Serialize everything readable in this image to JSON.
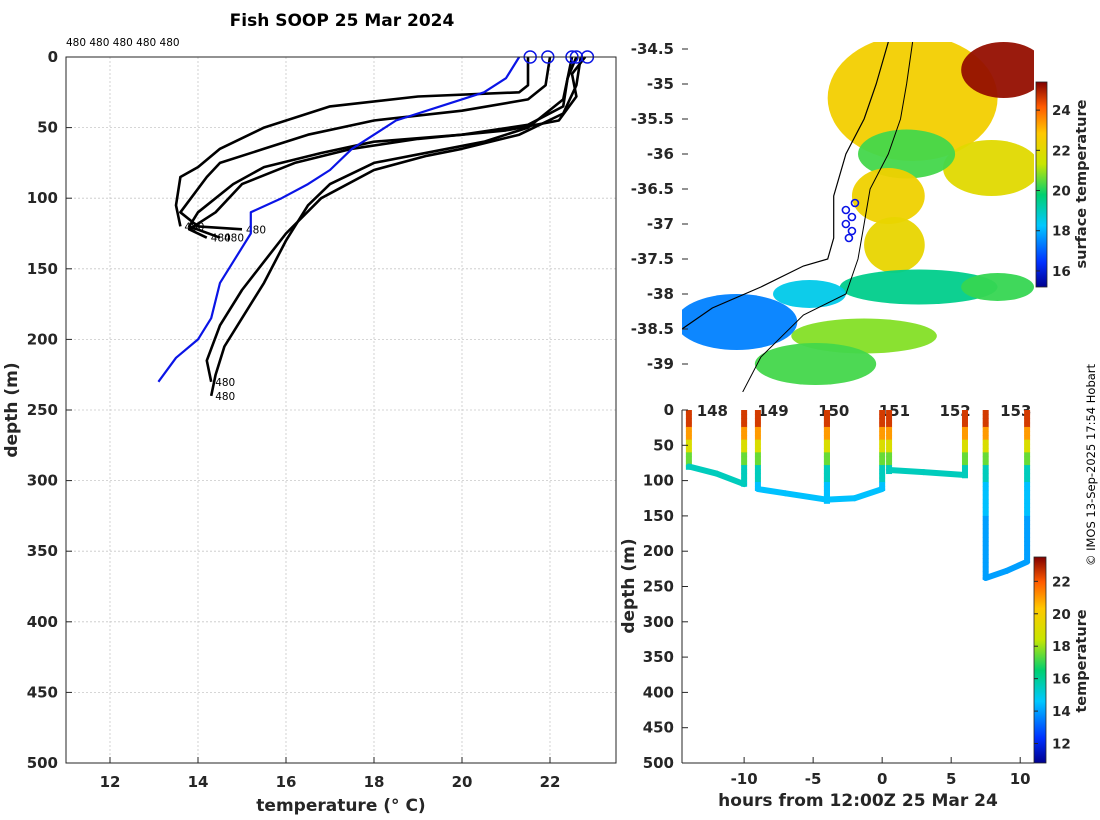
{
  "figure": {
    "title": "Fish SOOP 25 Mar 2024",
    "drop_id_labels": "480 480 480 480 480",
    "credit": "© IMOS 13-Sep-2025 17:54 Hobart",
    "profile_label": "480"
  },
  "chart_data": [
    {
      "id": "profiles",
      "type": "line",
      "title": "Fish SOOP 25 Mar 2024",
      "xlabel": "temperature (° C)",
      "ylabel": "depth (m)",
      "xlim": [
        11,
        23.5
      ],
      "ylim": [
        500,
        0
      ],
      "xticks": [
        12,
        14,
        16,
        18,
        20,
        22
      ],
      "yticks": [
        0,
        50,
        100,
        150,
        200,
        250,
        300,
        350,
        400,
        450,
        500
      ],
      "grid": true,
      "series": [
        {
          "name": "profile-1",
          "color": "#000000",
          "points": [
            [
              21.5,
              0
            ],
            [
              21.5,
              20
            ],
            [
              21.3,
              25
            ],
            [
              19,
              28
            ],
            [
              17,
              35
            ],
            [
              15.5,
              50
            ],
            [
              14.5,
              65
            ],
            [
              14,
              78
            ],
            [
              13.6,
              85
            ],
            [
              13.5,
              105
            ],
            [
              13.6,
              120
            ]
          ]
        },
        {
          "name": "profile-2",
          "color": "#000000",
          "points": [
            [
              22,
              0
            ],
            [
              21.9,
              20
            ],
            [
              21.5,
              30
            ],
            [
              20,
              38
            ],
            [
              18,
              45
            ],
            [
              16.5,
              55
            ],
            [
              15.5,
              65
            ],
            [
              14.5,
              75
            ],
            [
              14.2,
              85
            ],
            [
              13.6,
              110
            ],
            [
              14,
              120
            ],
            [
              15,
              122
            ]
          ]
        },
        {
          "name": "profile-3",
          "color": "#000000",
          "points": [
            [
              22.6,
              0
            ],
            [
              22.4,
              15
            ],
            [
              22.3,
              35
            ],
            [
              21.5,
              48
            ],
            [
              20,
              55
            ],
            [
              18,
              60
            ],
            [
              16.8,
              68
            ],
            [
              15.5,
              78
            ],
            [
              14.8,
              90
            ],
            [
              14,
              110
            ],
            [
              13.8,
              120
            ],
            [
              14.5,
              128
            ]
          ]
        },
        {
          "name": "profile-4",
          "color": "#000000",
          "points": [
            [
              22.8,
              0
            ],
            [
              22.5,
              12
            ],
            [
              22.6,
              28
            ],
            [
              22.2,
              45
            ],
            [
              21,
              52
            ],
            [
              19,
              58
            ],
            [
              17.5,
              65
            ],
            [
              16.2,
              75
            ],
            [
              15,
              90
            ],
            [
              14.4,
              110
            ],
            [
              13.8,
              122
            ],
            [
              14.2,
              128
            ]
          ]
        },
        {
          "name": "profile-5",
          "color": "#000000",
          "points": [
            [
              22.5,
              0
            ],
            [
              22.3,
              30
            ],
            [
              21.5,
              50
            ],
            [
              20.5,
              60
            ],
            [
              19.5,
              66
            ],
            [
              18,
              75
            ],
            [
              17,
              90
            ],
            [
              16.5,
              105
            ],
            [
              16,
              130
            ],
            [
              15.5,
              160
            ],
            [
              15,
              185
            ],
            [
              14.6,
              205
            ],
            [
              14.4,
              225
            ],
            [
              14.3,
              240
            ]
          ]
        },
        {
          "name": "profile-6",
          "color": "#000000",
          "points": [
            [
              22.7,
              0
            ],
            [
              22.6,
              20
            ],
            [
              22.3,
              40
            ],
            [
              21.3,
              55
            ],
            [
              20,
              65
            ],
            [
              19.2,
              70
            ],
            [
              18,
              80
            ],
            [
              16.8,
              100
            ],
            [
              16,
              125
            ],
            [
              15.5,
              145
            ],
            [
              15,
              165
            ],
            [
              14.5,
              190
            ],
            [
              14.2,
              215
            ],
            [
              14.3,
              230
            ]
          ]
        },
        {
          "name": "mean-profile",
          "color": "#0a14e6",
          "points": [
            [
              21.3,
              0
            ],
            [
              21,
              15
            ],
            [
              20.5,
              25
            ],
            [
              19.5,
              35
            ],
            [
              18.5,
              45
            ],
            [
              18,
              55
            ],
            [
              17.5,
              65
            ],
            [
              17,
              80
            ],
            [
              16.5,
              90
            ],
            [
              15.9,
              100
            ],
            [
              15.2,
              110
            ],
            [
              15.2,
              125
            ],
            [
              14.9,
              140
            ],
            [
              14.5,
              160
            ],
            [
              14.3,
              185
            ],
            [
              14,
              200
            ],
            [
              13.5,
              213
            ],
            [
              13.1,
              230
            ]
          ]
        }
      ],
      "surface_markers_x": [
        21.55,
        21.95,
        22.5,
        22.6,
        22.85
      ]
    },
    {
      "id": "map",
      "type": "heatmap",
      "colorbar_label": "surface temperature",
      "colorbar_ticks": [
        16,
        18,
        20,
        22,
        24
      ],
      "colorbar_range": [
        15.2,
        25.4
      ],
      "xlim": [
        147.5,
        153.3
      ],
      "ylim": [
        -39.4,
        -34.4
      ],
      "xticks": [
        148,
        149,
        150,
        151,
        152,
        153
      ],
      "xtick_labels": [
        "148",
        "149",
        "150",
        "151",
        "152",
        "153"
      ],
      "yticks": [
        -34.5,
        -35,
        -35.5,
        -36,
        -36.5,
        -37,
        -37.5,
        -38,
        -38.5,
        -39
      ],
      "ytick_labels": [
        "-34.5",
        "-35",
        "-35.5",
        "-36",
        "-36.5",
        "-37",
        "-37.5",
        "-38",
        "-38.5",
        "-39"
      ],
      "stations": [
        [
          150.2,
          -36.8
        ],
        [
          150.3,
          -36.9
        ],
        [
          150.35,
          -36.7
        ],
        [
          150.2,
          -37
        ],
        [
          150.3,
          -37.1
        ],
        [
          150.25,
          -37.2
        ]
      ],
      "sst_patches": [
        {
          "lon": 151.3,
          "lat": -35.2,
          "rx": 1.4,
          "ry": 0.9,
          "t": 22.5
        },
        {
          "lon": 152.8,
          "lat": -34.8,
          "rx": 0.7,
          "ry": 0.4,
          "t": 25.2
        },
        {
          "lon": 152.6,
          "lat": -36.2,
          "rx": 0.8,
          "ry": 0.4,
          "t": 22.0
        },
        {
          "lon": 151.2,
          "lat": -36.0,
          "rx": 0.8,
          "ry": 0.35,
          "t": 20.3
        },
        {
          "lon": 150.9,
          "lat": -36.6,
          "rx": 0.6,
          "ry": 0.4,
          "t": 22.4
        },
        {
          "lon": 151.0,
          "lat": -37.3,
          "rx": 0.5,
          "ry": 0.4,
          "t": 22.2
        },
        {
          "lon": 151.4,
          "lat": -37.9,
          "rx": 1.3,
          "ry": 0.25,
          "t": 19.5
        },
        {
          "lon": 152.7,
          "lat": -37.9,
          "rx": 0.6,
          "ry": 0.2,
          "t": 20.2
        },
        {
          "lon": 148.4,
          "lat": -38.4,
          "rx": 1.0,
          "ry": 0.4,
          "t": 17.4
        },
        {
          "lon": 149.6,
          "lat": -38.0,
          "rx": 0.6,
          "ry": 0.2,
          "t": 18.5
        },
        {
          "lon": 150.5,
          "lat": -38.6,
          "rx": 1.2,
          "ry": 0.25,
          "t": 20.8
        },
        {
          "lon": 149.7,
          "lat": -39.0,
          "rx": 1.0,
          "ry": 0.3,
          "t": 20.3
        }
      ]
    },
    {
      "id": "section",
      "type": "scatter",
      "xlabel": "hours from 12:00Z 25 Mar 24",
      "ylabel": "depth (m)",
      "colorbar_label": "temperature",
      "colorbar_ticks": [
        12,
        14,
        16,
        18,
        20,
        22
      ],
      "colorbar_range": [
        10.8,
        23.5
      ],
      "xlim": [
        -14.5,
        11
      ],
      "ylim": [
        500,
        0
      ],
      "xticks": [
        -10,
        -5,
        0,
        5,
        10
      ],
      "yticks": [
        0,
        50,
        100,
        150,
        200,
        250,
        300,
        350,
        400,
        450,
        500
      ],
      "drops": [
        {
          "x0": -14,
          "x1": -10,
          "bottom": [
            [
              -14,
              80
            ],
            [
              -12,
              90
            ],
            [
              -10,
              105
            ]
          ]
        },
        {
          "x0": -9,
          "x1": -4,
          "bottom": [
            [
              -9,
              112
            ],
            [
              -7,
              118
            ],
            [
              -4,
              127
            ]
          ]
        },
        {
          "x0": -4,
          "x1": 0,
          "bottom": [
            [
              -4,
              127
            ],
            [
              -2,
              125
            ],
            [
              0,
              112
            ]
          ]
        },
        {
          "x0": 0.5,
          "x1": 6,
          "bottom": [
            [
              0.5,
              85
            ],
            [
              3,
              88
            ],
            [
              6,
              92
            ]
          ]
        },
        {
          "x0": 7.5,
          "x1": 10.5,
          "bottom": [
            [
              7.5,
              238
            ],
            [
              9,
              228
            ],
            [
              10.5,
              215
            ]
          ]
        }
      ]
    }
  ]
}
